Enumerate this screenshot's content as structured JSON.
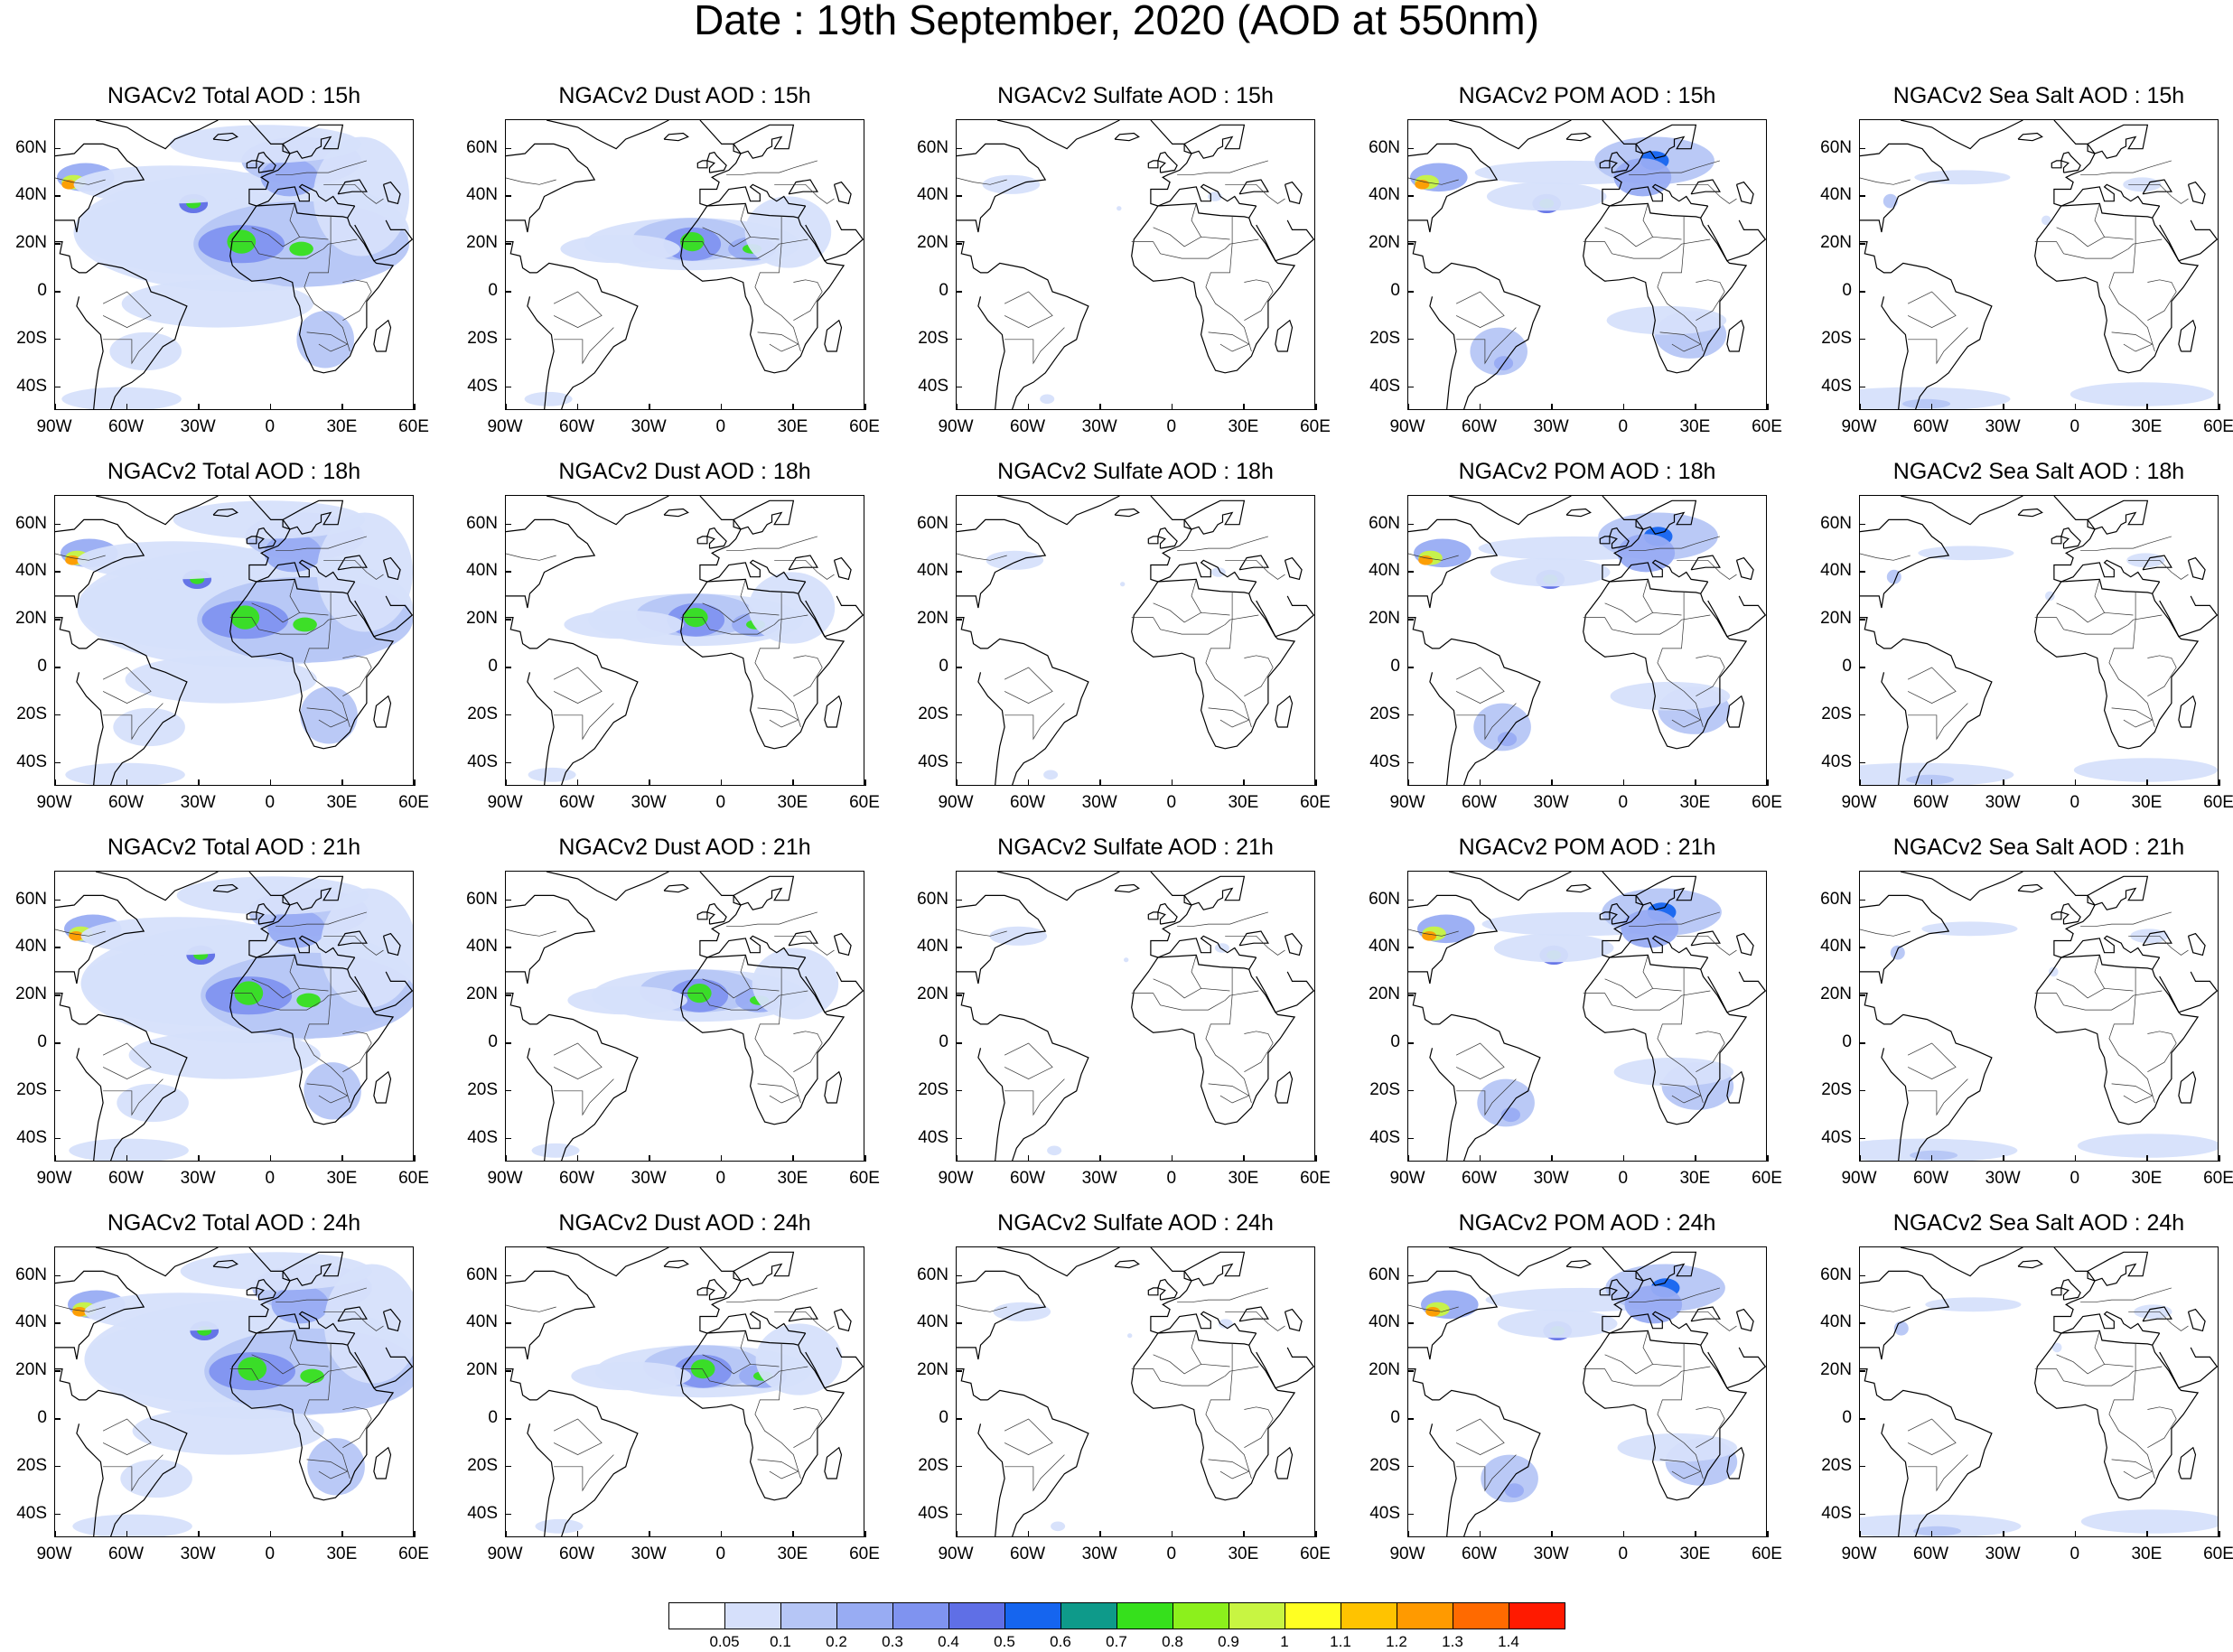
{
  "title": "Date : 19th September, 2020 (AOD at 550nm)",
  "panels": [
    [
      "NGACv2 Total AOD : 15h",
      "NGACv2 Dust AOD : 15h",
      "NGACv2 Sulfate AOD : 15h",
      "NGACv2 POM AOD : 15h",
      "NGACv2 Sea Salt AOD : 15h"
    ],
    [
      "NGACv2 Total AOD : 18h",
      "NGACv2 Dust AOD : 18h",
      "NGACv2 Sulfate AOD : 18h",
      "NGACv2 POM AOD : 18h",
      "NGACv2 Sea Salt AOD : 18h"
    ],
    [
      "NGACv2 Total AOD : 21h",
      "NGACv2 Dust AOD : 21h",
      "NGACv2 Sulfate AOD : 21h",
      "NGACv2 POM AOD : 21h",
      "NGACv2 Sea Salt AOD : 21h"
    ],
    [
      "NGACv2 Total AOD : 24h",
      "NGACv2 Dust AOD : 24h",
      "NGACv2 Sulfate AOD : 24h",
      "NGACv2 POM AOD : 24h",
      "NGACv2 Sea Salt  AOD : 24h"
    ]
  ],
  "lat_labels": [
    "60N",
    "40N",
    "20N",
    "0",
    "20S",
    "40S"
  ],
  "lon_labels": [
    "90W",
    "60W",
    "30W",
    "0",
    "30E",
    "60E"
  ],
  "colorbar": {
    "labels": [
      "0.05",
      "0.1",
      "0.2",
      "0.3",
      "0.4",
      "0.5",
      "0.6",
      "0.7",
      "0.8",
      "0.9",
      "1",
      "1.1",
      "1.2",
      "1.3",
      "1.4"
    ],
    "colors": [
      "#ffffff",
      "#d6e0fb",
      "#b6c6f6",
      "#98acf3",
      "#7f93f0",
      "#5f6fe6",
      "#1565ef",
      "#0e9a8a",
      "#36e01c",
      "#8cf01c",
      "#c8f542",
      "#ffff22",
      "#ffc300",
      "#ff9a00",
      "#ff6a00",
      "#ff1a00"
    ]
  }
}
